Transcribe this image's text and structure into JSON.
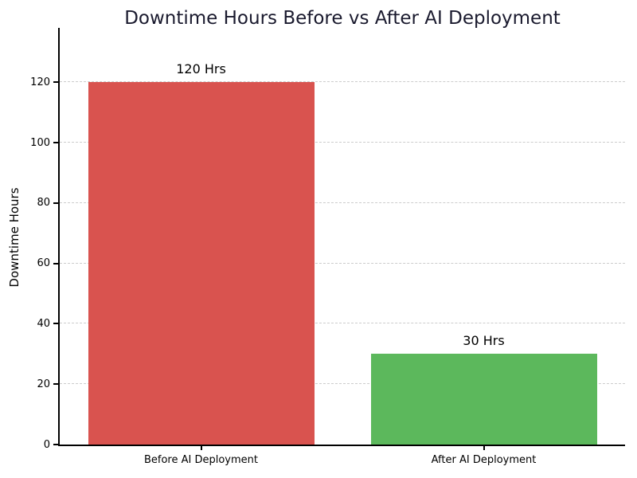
{
  "figure": {
    "background": "#ffffff"
  },
  "chart_data": {
    "type": "bar",
    "title": "Downtime Hours Before vs After AI Deployment",
    "title_color": "#1a1a2e",
    "xlabel": "",
    "ylabel": "Downtime Hours",
    "categories": [
      "Before AI Deployment",
      "After AI Deployment"
    ],
    "values": [
      120,
      30
    ],
    "bar_labels": [
      "120 Hrs",
      "30 Hrs"
    ],
    "bar_colors": [
      "#d9534f",
      "#5cb85c"
    ],
    "yticks": [
      0,
      20,
      40,
      60,
      80,
      100,
      120
    ],
    "ylim": [
      0,
      138
    ],
    "bar_width_fraction": 0.8,
    "grid": {
      "axis": "y",
      "style": "dashed",
      "color": "#cccccc"
    },
    "legend": "none",
    "spines": [
      "left",
      "bottom"
    ],
    "text_color": "#000000"
  }
}
